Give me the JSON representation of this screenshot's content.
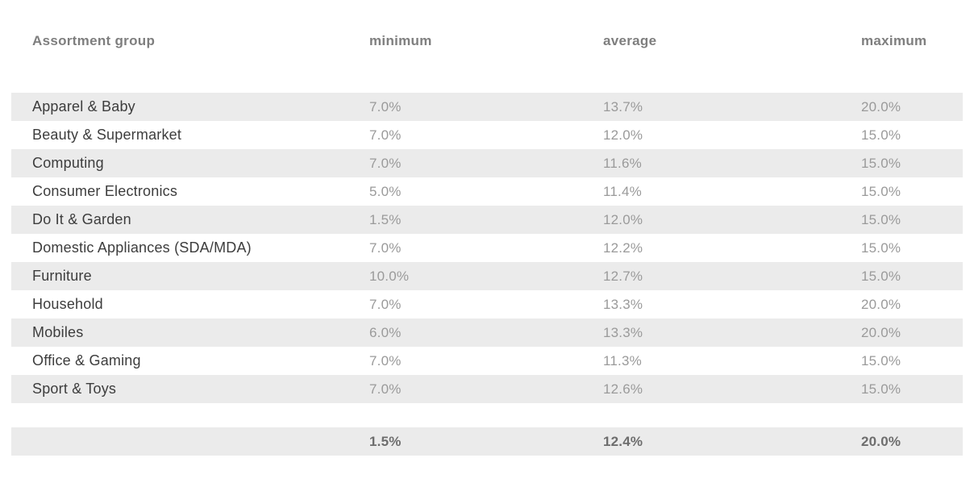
{
  "colors": {
    "stripe": "#ebebeb",
    "header_text": "#7e7e7e",
    "label_text": "#3d3d3d",
    "value_text": "#9a9a9a",
    "summary_text": "#6d6d6d"
  },
  "table": {
    "columns": [
      {
        "key": "group",
        "label": "Assortment group"
      },
      {
        "key": "minimum",
        "label": "minimum"
      },
      {
        "key": "average",
        "label": "average"
      },
      {
        "key": "maximum",
        "label": "maximum"
      }
    ],
    "rows": [
      {
        "group": "Apparel & Baby",
        "minimum": "7.0%",
        "average": "13.7%",
        "maximum": "20.0%"
      },
      {
        "group": "Beauty & Supermarket",
        "minimum": "7.0%",
        "average": "12.0%",
        "maximum": "15.0%"
      },
      {
        "group": "Computing",
        "minimum": "7.0%",
        "average": "11.6%",
        "maximum": "15.0%"
      },
      {
        "group": "Consumer Electronics",
        "minimum": "5.0%",
        "average": "11.4%",
        "maximum": "15.0%"
      },
      {
        "group": "Do It & Garden",
        "minimum": "1.5%",
        "average": "12.0%",
        "maximum": "15.0%"
      },
      {
        "group": "Domestic Appliances (SDA/MDA)",
        "minimum": "7.0%",
        "average": "12.2%",
        "maximum": "15.0%"
      },
      {
        "group": "Furniture",
        "minimum": "10.0%",
        "average": "12.7%",
        "maximum": "15.0%"
      },
      {
        "group": "Household",
        "minimum": "7.0%",
        "average": "13.3%",
        "maximum": "20.0%"
      },
      {
        "group": "Mobiles",
        "minimum": "6.0%",
        "average": "13.3%",
        "maximum": "20.0%"
      },
      {
        "group": "Office & Gaming",
        "minimum": "7.0%",
        "average": "11.3%",
        "maximum": "15.0%"
      },
      {
        "group": "Sport & Toys",
        "minimum": "7.0%",
        "average": "12.6%",
        "maximum": "15.0%"
      }
    ],
    "summary": {
      "group": "",
      "minimum": "1.5%",
      "average": "12.4%",
      "maximum": "20.0%"
    }
  },
  "chart_data": {
    "type": "table",
    "title": "",
    "columns": [
      "Assortment group",
      "minimum",
      "average",
      "maximum"
    ],
    "rows": [
      [
        "Apparel & Baby",
        7.0,
        13.7,
        20.0
      ],
      [
        "Beauty & Supermarket",
        7.0,
        12.0,
        15.0
      ],
      [
        "Computing",
        7.0,
        11.6,
        15.0
      ],
      [
        "Consumer Electronics",
        5.0,
        11.4,
        15.0
      ],
      [
        "Do It & Garden",
        1.5,
        12.0,
        15.0
      ],
      [
        "Domestic Appliances (SDA/MDA)",
        7.0,
        12.2,
        15.0
      ],
      [
        "Furniture",
        10.0,
        12.7,
        15.0
      ],
      [
        "Household",
        7.0,
        13.3,
        20.0
      ],
      [
        "Mobiles",
        6.0,
        13.3,
        20.0
      ],
      [
        "Office & Gaming",
        7.0,
        11.3,
        15.0
      ],
      [
        "Sport & Toys",
        7.0,
        12.6,
        15.0
      ]
    ],
    "summary_row": {
      "minimum": 1.5,
      "average": 12.4,
      "maximum": 20.0
    },
    "unit": "percent",
    "layout_hints": {
      "zebra_striping": true,
      "summary_bold": true,
      "grid": false
    }
  }
}
